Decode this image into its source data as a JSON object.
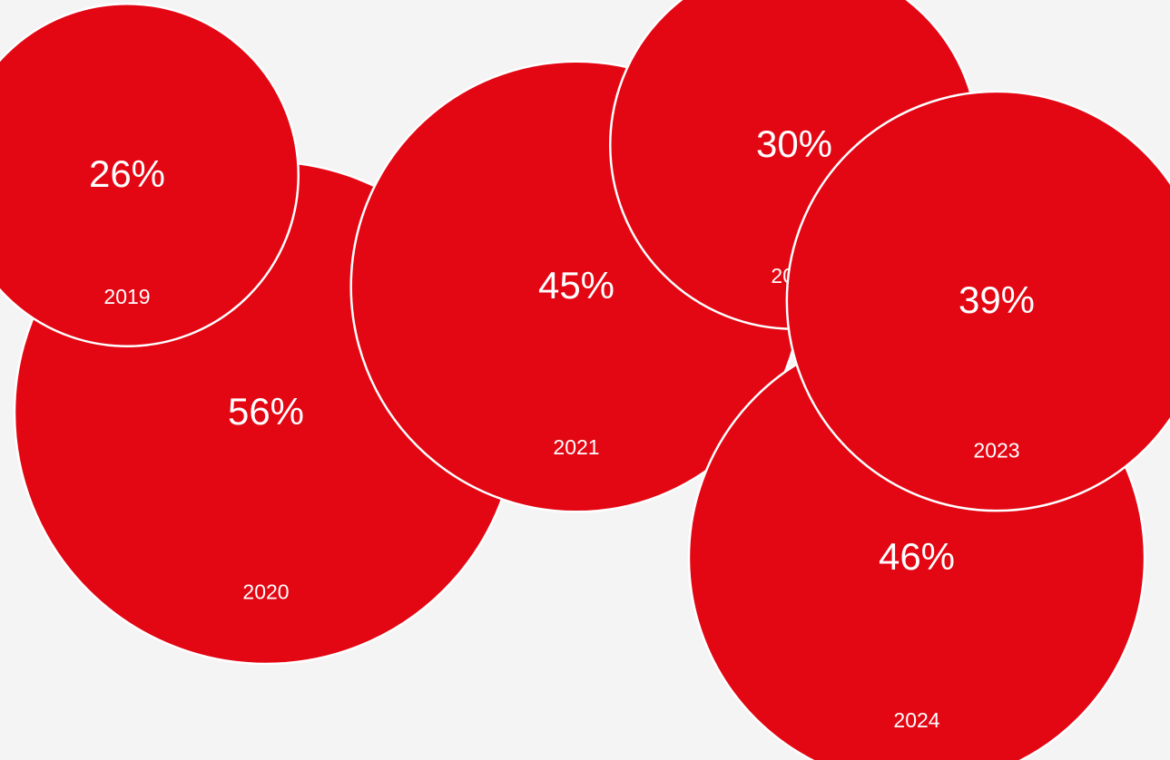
{
  "chart_data": {
    "type": "bubble",
    "categories": [
      "2019",
      "2020",
      "2021",
      "2022",
      "2023",
      "2024"
    ],
    "values": [
      26,
      56,
      45,
      30,
      39,
      46
    ],
    "value_labels": [
      "26%",
      "56%",
      "45%",
      "30%",
      "39%",
      "46%"
    ],
    "unit": "%",
    "bubble_color": "#e30613",
    "outline_color": "#ffffff",
    "label_color": "#ffffff",
    "background_color": "#f4f4f4"
  }
}
